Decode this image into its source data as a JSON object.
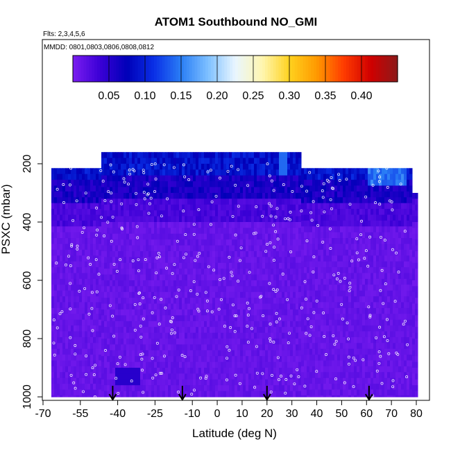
{
  "chart_data": {
    "type": "heatmap",
    "title": "ATOM1 Southbound NO_GMI",
    "subtitle_flights": "Flts: 2,3,4,5,6",
    "subtitle_dates": "MMDD: 0801,0803,0806,0808,0812",
    "xlabel": "Latitude (deg N)",
    "ylabel": "PSXC (mbar)",
    "xlim": [
      -70,
      80
    ],
    "ylim": [
      1000,
      100
    ],
    "x_ticks": [
      -70,
      -55,
      -40,
      -25,
      -10,
      0,
      10,
      20,
      30,
      40,
      50,
      60,
      70,
      80
    ],
    "y_ticks": [
      200,
      400,
      600,
      800,
      1000
    ],
    "colorbar": {
      "range": [
        0,
        0.45
      ],
      "ticks": [
        0.05,
        0.1,
        0.15,
        0.2,
        0.25,
        0.3,
        0.35,
        0.4
      ],
      "tick_labels": [
        "0.05",
        "0.10",
        "0.15",
        "0.20",
        "0.25",
        "0.30",
        "0.35",
        "0.40"
      ],
      "colors": [
        "#7a1df0",
        "#3b00d6",
        "#0000b8",
        "#0a2fe6",
        "#2a7ef5",
        "#7ec0ff",
        "#e9f6ff",
        "#fff6b0",
        "#ffd21f",
        "#ff9a00",
        "#ff3c00",
        "#d00000",
        "#8c1a1a"
      ]
    },
    "profile_markers_lat": [
      -42,
      -14,
      20,
      61
    ],
    "description_values": {
      "upper_troposphere_200_300mbar": 0.05,
      "mid_troposphere_400_1000mbar": 0.01,
      "southern_low_level_blob_lat_-40_900mbar": 0.04
    }
  }
}
